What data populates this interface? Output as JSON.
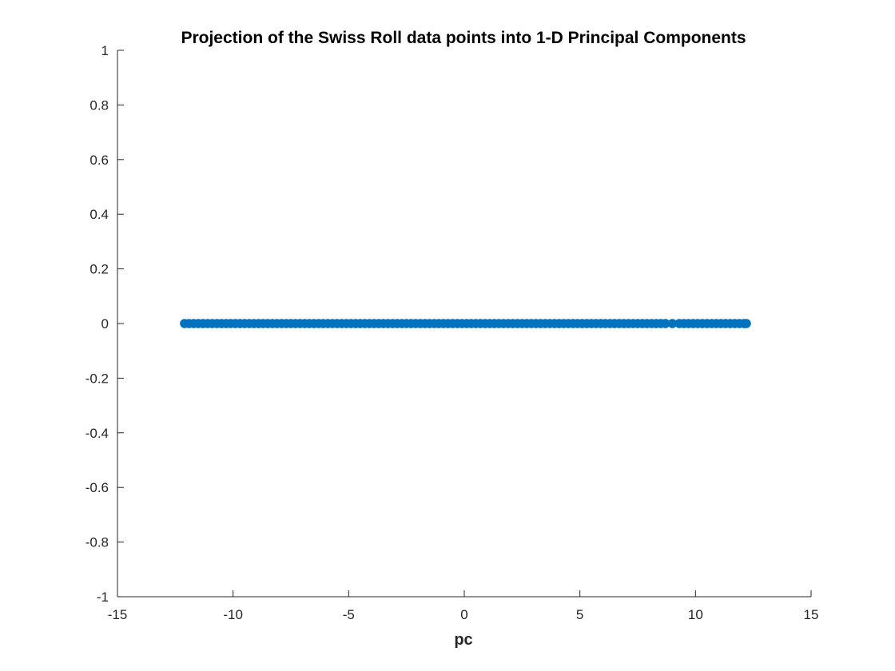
{
  "chart_data": {
    "type": "scatter",
    "title": "Projection of the Swiss Roll data points into 1-D Principal Components",
    "xlabel": "pc",
    "ylabel": "",
    "xlim": [
      -15,
      15
    ],
    "ylim": [
      -1,
      1
    ],
    "xticks": [
      -15,
      -10,
      -5,
      0,
      5,
      10,
      15
    ],
    "xtick_labels": [
      "-15",
      "-10",
      "-5",
      "0",
      "5",
      "10",
      "15"
    ],
    "yticks": [
      -1,
      -0.8,
      -0.6,
      -0.4,
      -0.2,
      0,
      0.2,
      0.4,
      0.6,
      0.8,
      1
    ],
    "ytick_labels": [
      "-1",
      "-0.8",
      "-0.6",
      "-0.4",
      "-0.2",
      "0",
      "0.2",
      "0.4",
      "0.6",
      "0.8",
      "1"
    ],
    "grid": false,
    "marker": "open-circle",
    "series": [
      {
        "color": "#0072BD",
        "x": [
          -12.1,
          -11.9,
          -11.7,
          -11.5,
          -11.3,
          -11.1,
          -10.9,
          -10.7,
          -10.5,
          -10.3,
          -10.1,
          -9.9,
          -9.7,
          -9.5,
          -9.3,
          -9.1,
          -8.9,
          -8.7,
          -8.5,
          -8.3,
          -8.1,
          -7.9,
          -7.7,
          -7.5,
          -7.3,
          -7.1,
          -6.9,
          -6.7,
          -6.5,
          -6.3,
          -6.1,
          -5.9,
          -5.7,
          -5.5,
          -5.3,
          -5.1,
          -4.9,
          -4.7,
          -4.5,
          -4.3,
          -4.1,
          -3.9,
          -3.7,
          -3.5,
          -3.3,
          -3.1,
          -2.9,
          -2.7,
          -2.5,
          -2.3,
          -2.1,
          -1.9,
          -1.7,
          -1.5,
          -1.3,
          -1.1,
          -0.9,
          -0.7,
          -0.5,
          -0.3,
          -0.1,
          0.1,
          0.3,
          0.5,
          0.7,
          0.9,
          1.1,
          1.3,
          1.5,
          1.7,
          1.9,
          2.1,
          2.3,
          2.5,
          2.7,
          2.9,
          3.1,
          3.3,
          3.5,
          3.7,
          3.9,
          4.1,
          4.3,
          4.5,
          4.7,
          4.9,
          5.1,
          5.3,
          5.5,
          5.7,
          5.9,
          6.1,
          6.3,
          6.5,
          6.7,
          6.9,
          7.1,
          7.3,
          7.5,
          7.7,
          7.9,
          8.1,
          8.3,
          8.5,
          8.7,
          9.0,
          9.3,
          9.5,
          9.7,
          9.9,
          10.1,
          10.3,
          10.5,
          10.7,
          10.9,
          11.1,
          11.3,
          11.5,
          11.7,
          11.9,
          12.1,
          12.2
        ],
        "y": [
          0,
          0,
          0,
          0,
          0,
          0,
          0,
          0,
          0,
          0,
          0,
          0,
          0,
          0,
          0,
          0,
          0,
          0,
          0,
          0,
          0,
          0,
          0,
          0,
          0,
          0,
          0,
          0,
          0,
          0,
          0,
          0,
          0,
          0,
          0,
          0,
          0,
          0,
          0,
          0,
          0,
          0,
          0,
          0,
          0,
          0,
          0,
          0,
          0,
          0,
          0,
          0,
          0,
          0,
          0,
          0,
          0,
          0,
          0,
          0,
          0,
          0,
          0,
          0,
          0,
          0,
          0,
          0,
          0,
          0,
          0,
          0,
          0,
          0,
          0,
          0,
          0,
          0,
          0,
          0,
          0,
          0,
          0,
          0,
          0,
          0,
          0,
          0,
          0,
          0,
          0,
          0,
          0,
          0,
          0,
          0,
          0,
          0,
          0,
          0,
          0,
          0,
          0,
          0,
          0,
          0,
          0,
          0,
          0,
          0,
          0,
          0,
          0,
          0,
          0,
          0,
          0,
          0,
          0,
          0,
          0,
          0
        ]
      }
    ]
  }
}
